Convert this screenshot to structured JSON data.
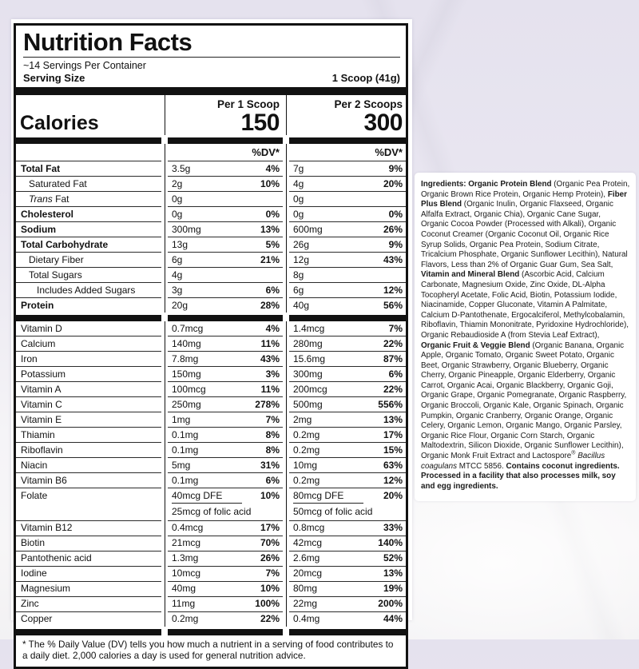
{
  "label": {
    "title": "Nutrition Facts",
    "servings_per_container": "~14 Servings Per Container",
    "serving_size_label": "Serving Size",
    "serving_size_value": "1 Scoop (41g)",
    "calories_label": "Calories",
    "columns": [
      {
        "header": "Per 1 Scoop",
        "calories": "150",
        "dv_header": "%DV*"
      },
      {
        "header": "Per 2 Scoops",
        "calories": "300",
        "dv_header": "%DV*"
      }
    ],
    "rows": [
      {
        "name": "Total Fat",
        "bold": true,
        "a1": "3.5g",
        "p1": "4%",
        "a2": "7g",
        "p2": "9%"
      },
      {
        "name": "Saturated Fat",
        "indent": 1,
        "a1": "2g",
        "p1": "10%",
        "a2": "4g",
        "p2": "20%"
      },
      {
        "name": " Fat",
        "italic_prefix": "Trans",
        "indent": 1,
        "a1": "0g",
        "p1": "",
        "a2": "0g",
        "p2": ""
      },
      {
        "name": "Cholesterol",
        "bold": true,
        "a1": "0g",
        "p1": "0%",
        "a2": "0g",
        "p2": "0%"
      },
      {
        "name": "Sodium",
        "bold": true,
        "a1": "300mg",
        "p1": "13%",
        "a2": "600mg",
        "p2": "26%"
      },
      {
        "name": "Total Carbohydrate",
        "bold": true,
        "a1": "13g",
        "p1": "5%",
        "a2": "26g",
        "p2": "9%"
      },
      {
        "name": "Dietary Fiber",
        "indent": 1,
        "a1": "6g",
        "p1": "21%",
        "a2": "12g",
        "p2": "43%"
      },
      {
        "name": "Total Sugars",
        "indent": 1,
        "a1": "4g",
        "p1": "",
        "a2": "8g",
        "p2": ""
      },
      {
        "name": "Includes Added Sugars",
        "indent": 2,
        "a1": "3g",
        "p1": "6%",
        "a2": "6g",
        "p2": "12%"
      },
      {
        "name": "Protein",
        "bold": true,
        "a1": "20g",
        "p1": "28%",
        "a2": "40g",
        "p2": "56%"
      },
      {
        "type": "bar"
      },
      {
        "name": "Vitamin D",
        "a1": "0.7mcg",
        "p1": "4%",
        "a2": "1.4mcg",
        "p2": "7%"
      },
      {
        "name": "Calcium",
        "a1": "140mg",
        "p1": "11%",
        "a2": "280mg",
        "p2": "22%"
      },
      {
        "name": "Iron",
        "a1": "7.8mg",
        "p1": "43%",
        "a2": "15.6mg",
        "p2": "87%"
      },
      {
        "name": "Potassium",
        "a1": "150mg",
        "p1": "3%",
        "a2": "300mg",
        "p2": "6%"
      },
      {
        "name": "Vitamin A",
        "a1": "100mcg",
        "p1": "11%",
        "a2": "200mcg",
        "p2": "22%"
      },
      {
        "name": "Vitamin C",
        "a1": "250mg",
        "p1": "278%",
        "a2": "500mg",
        "p2": "556%"
      },
      {
        "name": "Vitamin E",
        "a1": "1mg",
        "p1": "7%",
        "a2": "2mg",
        "p2": "13%"
      },
      {
        "name": "Thiamin",
        "a1": "0.1mg",
        "p1": "8%",
        "a2": "0.2mg",
        "p2": "17%"
      },
      {
        "name": "Riboflavin",
        "a1": "0.1mg",
        "p1": "8%",
        "a2": "0.2mg",
        "p2": "15%"
      },
      {
        "name": "Niacin",
        "a1": "5mg",
        "p1": "31%",
        "a2": "10mg",
        "p2": "63%"
      },
      {
        "name": "Vitamin B6",
        "a1": "0.1mg",
        "p1": "6%",
        "a2": "0.2mg",
        "p2": "12%"
      },
      {
        "name": "Folate",
        "a1": "40mcg DFE",
        "p1": "10%",
        "sub1": "25mcg of folic acid",
        "a2": "80mcg DFE",
        "p2": "20%",
        "sub2": "50mcg of folic acid"
      },
      {
        "name": "Vitamin B12",
        "a1": "0.4mcg",
        "p1": "17%",
        "a2": "0.8mcg",
        "p2": "33%"
      },
      {
        "name": "Biotin",
        "a1": "21mcg",
        "p1": "70%",
        "a2": "42mcg",
        "p2": "140%"
      },
      {
        "name": "Pantothenic acid",
        "a1": "1.3mg",
        "p1": "26%",
        "a2": "2.6mg",
        "p2": "52%"
      },
      {
        "name": "Iodine",
        "a1": "10mcg",
        "p1": "7%",
        "a2": "20mcg",
        "p2": "13%"
      },
      {
        "name": "Magnesium",
        "a1": "40mg",
        "p1": "10%",
        "a2": "80mg",
        "p2": "19%"
      },
      {
        "name": "Zinc",
        "a1": "11mg",
        "p1": "100%",
        "a2": "22mg",
        "p2": "200%"
      },
      {
        "name": "Copper",
        "a1": "0.2mg",
        "p1": "22%",
        "a2": "0.4mg",
        "p2": "44%"
      },
      {
        "type": "bar"
      }
    ],
    "footnote": "* The % Daily Value (DV) tells you how much a nutrient in a serving of food contributes to a daily diet. 2,000 calories a day is used for general nutrition advice."
  },
  "ingredients": {
    "segments": [
      {
        "text": "Ingredients: Organic Protein Blend ",
        "bold": true
      },
      {
        "text": "(Organic Pea Protein, Organic Brown Rice Protein, Organic Hemp Protein), "
      },
      {
        "text": "Fiber Plus Blend ",
        "bold": true
      },
      {
        "text": "(Organic Inulin, Organic Flaxseed, Organic Alfalfa Extract, Organic Chia), Organic Cane Sugar, Organic Cocoa Powder (Processed with Alkali), Organic Coconut Creamer (Organic Coconut Oil, Organic Rice Syrup Solids, Organic Pea Protein, Sodium Citrate, Tricalcium Phosphate, Organic Sunflower Lecithin), Natural Flavors, Less than 2% of Organic Guar Gum, Sea Salt, "
      },
      {
        "text": "Vitamin and Mineral Blend ",
        "bold": true
      },
      {
        "text": "(Ascorbic Acid, Calcium Carbonate, Magnesium Oxide, Zinc Oxide, DL-Alpha Tocopheryl Acetate, Folic Acid, Biotin, Potassium Iodide, Niacinamide, Copper Gluconate, Vitamin A Palmitate, Calcium D-Pantothenate, Ergocalciferol, Methylcobalamin, Riboflavin, Thiamin Mononitrate, Pyridoxine Hydrochloride), Organic Rebaudioside A (from Stevia Leaf Extract), "
      },
      {
        "text": "Organic Fruit & Veggie Blend ",
        "bold": true
      },
      {
        "text": "(Organic Banana, Organic Apple, Organic Tomato, Organic Sweet Potato, Organic Beet, Organic Strawberry, Organic Blueberry, Organic Cherry, Organic Pineapple, Organic Elderberry, Organic Carrot, Organic Acai, Organic Blackberry, Organic Goji, Organic Grape, Organic Pomegranate, Organic Raspberry, Organic Broccoli, Organic Kale, Organic Spinach, Organic Pumpkin, Organic Cranberry, Organic Orange, Organic Celery, Organic Lemon, Organic Mango, Organic Parsley, Organic Rice Flour, Organic Corn Starch, Organic Maltodextrin, Silicon Dioxide, Organic Sunflower Lecithin), Organic Monk Fruit Extract and Lactospore"
      },
      {
        "text": "®",
        "sup": true
      },
      {
        "text": " "
      },
      {
        "text": "Bacillus coagulans",
        "italic": true
      },
      {
        "text": " MTCC 5856. "
      },
      {
        "text": "Contains coconut ingredients. Processed in a facility that also processes milk, soy and egg ingredients.",
        "bold": true
      }
    ]
  },
  "colors": {
    "background_top": "#e5e2ee",
    "background_bottom": "#f2f1f3",
    "panel": "#ffffff",
    "ink": "#121212"
  }
}
